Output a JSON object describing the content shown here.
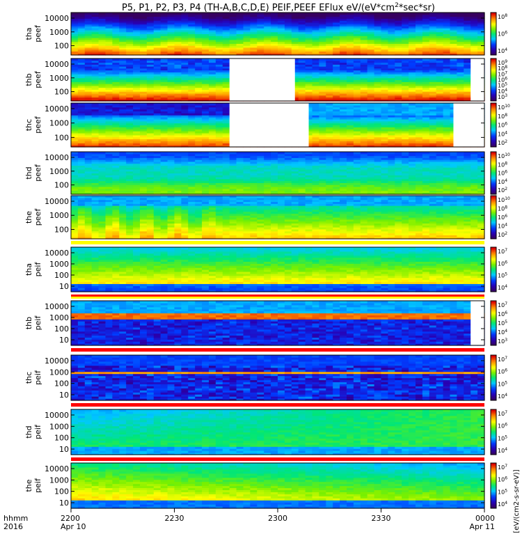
{
  "title": "P5, P1, P2, P3, P4 (TH-A,B,C,D,E) PEIF,PEEF EFlux eV/(eV*cm^2*sec*sr)",
  "title_parts": {
    "main": "P5, P1, P2, P3, P4 (TH-A,B,C,D,E) PEIF,PEEF EFlux eV/(eV*cm",
    "sup": "2",
    "rest": "*sec*sr)"
  },
  "x_axis": {
    "row_labels": [
      "hhmm",
      "2016"
    ],
    "ticks": [
      {
        "label": "2200",
        "date": "Apr 10"
      },
      {
        "label": "2230",
        "date": ""
      },
      {
        "label": "2300",
        "date": ""
      },
      {
        "label": "2330",
        "date": ""
      },
      {
        "label": "0000",
        "date": "Apr 11"
      }
    ]
  },
  "colorbar_units_label": "[eV/(cm2-s-sr-eV)]",
  "colors": {
    "background": "#ffffff",
    "frame": "#000000",
    "flag_red": "#ff0000",
    "flag_yellow": "#ffff00"
  },
  "chart_data": {
    "type": "heatmap",
    "time_range": [
      "2016-04-10 22:00",
      "2016-04-11 00:00"
    ],
    "colormap": "rainbow (purple-blue-cyan-green-yellow-red)",
    "log_scale": true,
    "panels": [
      {
        "probe": "tha",
        "species": "peef",
        "label_lines": [
          "tha",
          "peef"
        ],
        "y_ticks": [
          "10000",
          "1000",
          "100"
        ],
        "ylim_eV": [
          30,
          30000
        ],
        "colorbar_ticks": [
          "10^8",
          "10^6",
          "10^4"
        ],
        "gaps": []
      },
      {
        "probe": "thb",
        "species": "peef",
        "label_lines": [
          "thb",
          "peef"
        ],
        "y_ticks": [
          "10000",
          "1000",
          "100"
        ],
        "ylim_eV": [
          30,
          30000
        ],
        "colorbar_ticks": [
          "10^9",
          "10^8",
          "10^7",
          "10^6",
          "10^5",
          "10^4",
          "10^3"
        ],
        "gaps": [
          [
            "22:46",
            "23:05"
          ],
          [
            "23:56",
            "00:00"
          ]
        ]
      },
      {
        "probe": "thc",
        "species": "peef",
        "label_lines": [
          "thc",
          "peef"
        ],
        "y_ticks": [
          "10000",
          "1000",
          "100"
        ],
        "ylim_eV": [
          30,
          30000
        ],
        "colorbar_ticks": [
          "10^10",
          "10^8",
          "10^6",
          "10^4",
          "10^2"
        ],
        "gaps": [
          [
            "22:46",
            "23:09"
          ],
          [
            "23:51",
            "00:00"
          ]
        ]
      },
      {
        "probe": "thd",
        "species": "peef",
        "label_lines": [
          "thd",
          "peef"
        ],
        "y_ticks": [
          "10000",
          "1000",
          "100"
        ],
        "ylim_eV": [
          30,
          30000
        ],
        "colorbar_ticks": [
          "10^10",
          "10^8",
          "10^6",
          "10^4",
          "10^2"
        ],
        "gaps": []
      },
      {
        "probe": "the",
        "species": "peef",
        "label_lines": [
          "the",
          "peef"
        ],
        "y_ticks": [
          "10000",
          "1000",
          "100"
        ],
        "ylim_eV": [
          30,
          30000
        ],
        "colorbar_ticks": [
          "10^10",
          "10^8",
          "10^6",
          "10^4",
          "10^2"
        ],
        "gaps": []
      },
      {
        "probe": "tha",
        "species": "peif",
        "label_lines": [
          "tha",
          "peif"
        ],
        "y_ticks": [
          "10000",
          "1000",
          "100",
          "10"
        ],
        "ylim_eV": [
          5,
          30000
        ],
        "colorbar_ticks": [
          "10^7",
          "10^6",
          "10^5",
          "10^4"
        ],
        "gaps": []
      },
      {
        "probe": "thb",
        "species": "peif",
        "label_lines": [
          "thb",
          "peif"
        ],
        "y_ticks": [
          "10000",
          "1000",
          "100",
          "10"
        ],
        "ylim_eV": [
          5,
          30000
        ],
        "colorbar_ticks": [
          "10^7",
          "10^6",
          "10^5",
          "10^4",
          "10^3"
        ],
        "gaps": [
          [
            "23:56",
            "00:00"
          ]
        ]
      },
      {
        "probe": "thc",
        "species": "peif",
        "label_lines": [
          "thc",
          "peif"
        ],
        "y_ticks": [
          "10000",
          "1000",
          "100",
          "10"
        ],
        "ylim_eV": [
          5,
          30000
        ],
        "colorbar_ticks": [
          "10^7",
          "10^6",
          "10^5",
          "10^4"
        ],
        "gaps": []
      },
      {
        "probe": "thd",
        "species": "peif",
        "label_lines": [
          "thd",
          "peif"
        ],
        "y_ticks": [
          "10000",
          "1000",
          "100",
          "10"
        ],
        "ylim_eV": [
          5,
          30000
        ],
        "colorbar_ticks": [
          "10^7",
          "10^6",
          "10^5",
          "10^4"
        ],
        "gaps": []
      },
      {
        "probe": "the",
        "species": "peif",
        "label_lines": [
          "the",
          "peif"
        ],
        "y_ticks": [
          "10000",
          "1000",
          "100",
          "10"
        ],
        "ylim_eV": [
          5,
          30000
        ],
        "colorbar_ticks": [
          "10^7",
          "10^6",
          "10^5",
          "10^4"
        ],
        "gaps": []
      }
    ]
  }
}
